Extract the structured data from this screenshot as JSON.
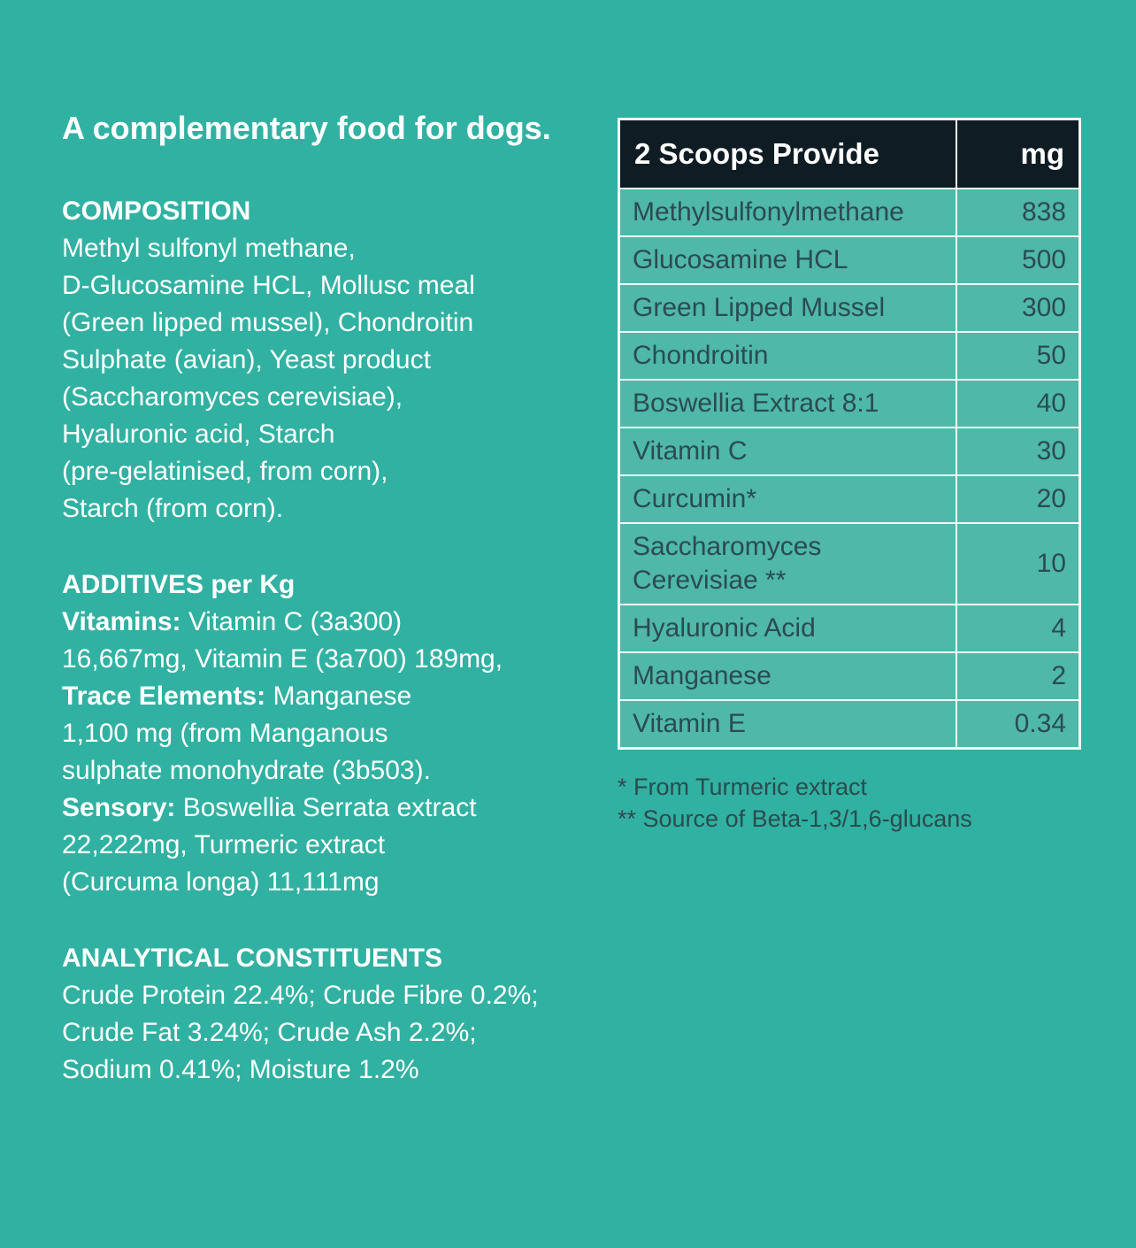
{
  "colors": {
    "background": "#31B1A1",
    "table_cell_bg": "#4FB8A8",
    "table_header_bg": "#0F1C23",
    "table_border": "#F2FAF8",
    "table_text": "#2B4B50",
    "body_text": "#FFFFFF"
  },
  "tagline": "A complementary food for dogs.",
  "composition": {
    "heading": "COMPOSITION",
    "body": "Methyl sulfonyl methane,\nD-Glucosamine HCL, Mollusc meal\n(Green lipped mussel), Chondroitin\nSulphate (avian), Yeast product\n(Saccharomyces cerevisiae),\nHyaluronic acid, Starch\n(pre-gelatinised, from corn),\nStarch (from corn)."
  },
  "additives": {
    "heading": "ADDITIVES per Kg",
    "segments": [
      {
        "text": "Vitamins:",
        "bold": true
      },
      {
        "text": " Vitamin C (3a300)\n16,667mg, Vitamin E (3a700) 189mg,\n",
        "bold": false
      },
      {
        "text": "Trace Elements:",
        "bold": true
      },
      {
        "text": " Manganese\n1,100 mg (from Manganous\nsulphate monohydrate (3b503).\n",
        "bold": false
      },
      {
        "text": "Sensory:",
        "bold": true
      },
      {
        "text": " Boswellia Serrata extract\n22,222mg, Turmeric extract\n(Curcuma longa) 11,111mg",
        "bold": false
      }
    ]
  },
  "analytical": {
    "heading": "ANALYTICAL CONSTITUENTS",
    "body": "Crude Protein 22.4%; Crude Fibre 0.2%;\nCrude Fat 3.24%; Crude Ash 2.2%;\nSodium 0.41%; Moisture 1.2%"
  },
  "table": {
    "header": {
      "name": "2 Scoops Provide",
      "unit": "mg"
    },
    "rows": [
      {
        "name": "Methylsulfonylmethane",
        "mg": "838"
      },
      {
        "name": "Glucosamine HCL",
        "mg": "500"
      },
      {
        "name": "Green Lipped Mussel",
        "mg": "300"
      },
      {
        "name": "Chondroitin",
        "mg": "50"
      },
      {
        "name": "Boswellia Extract 8:1",
        "mg": "40"
      },
      {
        "name": "Vitamin C",
        "mg": "30"
      },
      {
        "name": "Curcumin*",
        "mg": "20"
      },
      {
        "name": "Saccharomyces\nCerevisiae **",
        "mg": "10"
      },
      {
        "name": "Hyaluronic Acid",
        "mg": "4"
      },
      {
        "name": "Manganese",
        "mg": "2"
      },
      {
        "name": "Vitamin E",
        "mg": "0.34"
      }
    ]
  },
  "footnotes": [
    "* From Turmeric extract",
    "** Source of Beta-1,3/1,6-glucans"
  ]
}
